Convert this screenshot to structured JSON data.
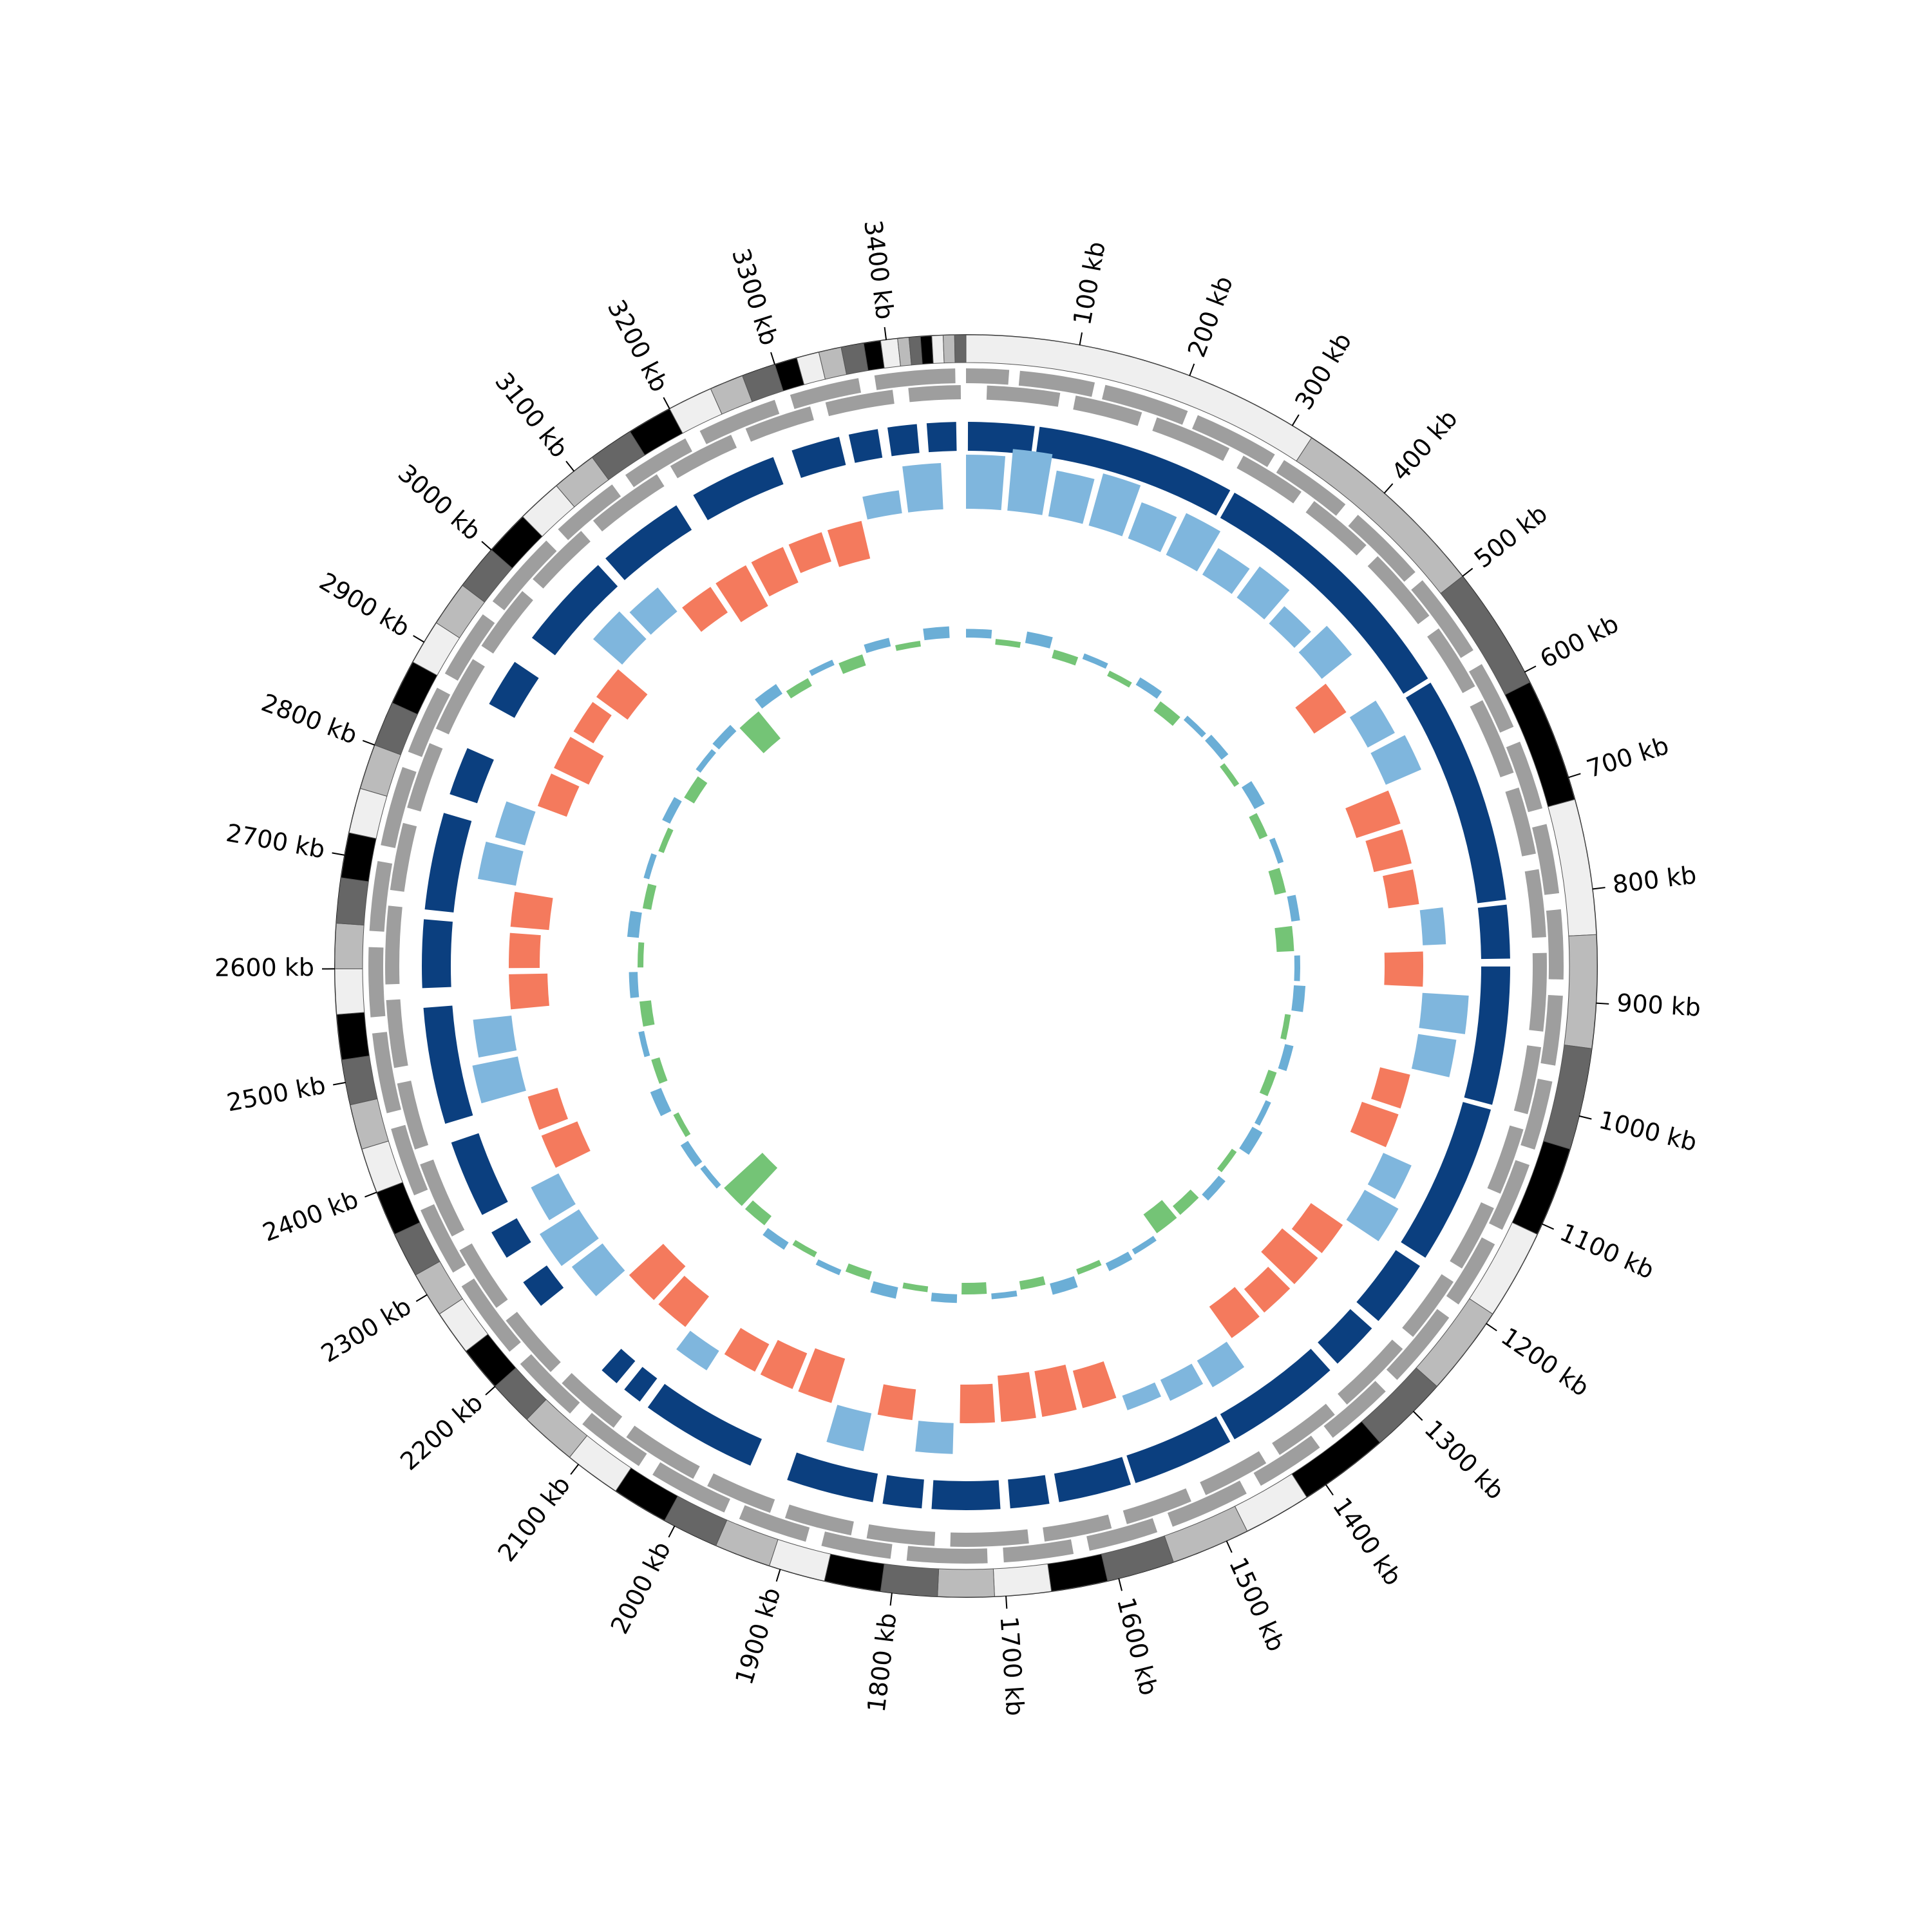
{
  "chart_data": {
    "type": "circos",
    "xlim": [
      0,
      3470
    ],
    "xticks": [
      {
        "value": 100,
        "label": "100 kb"
      },
      {
        "value": 200,
        "label": "200 kb"
      },
      {
        "value": 300,
        "label": "300 kb"
      },
      {
        "value": 400,
        "label": "400 kb"
      },
      {
        "value": 500,
        "label": "500 kb"
      },
      {
        "value": 600,
        "label": "600 kb"
      },
      {
        "value": 700,
        "label": "700 kb"
      },
      {
        "value": 800,
        "label": "800 kb"
      },
      {
        "value": 900,
        "label": "900 kb"
      },
      {
        "value": 1000,
        "label": "1000 kb"
      },
      {
        "value": 1100,
        "label": "1100 kb"
      },
      {
        "value": 1200,
        "label": "1200 kb"
      },
      {
        "value": 1300,
        "label": "1300 kb"
      },
      {
        "value": 1400,
        "label": "1400 kb"
      },
      {
        "value": 1500,
        "label": "1500 kb"
      },
      {
        "value": 1600,
        "label": "1600 kb"
      },
      {
        "value": 1700,
        "label": "1700 kb"
      },
      {
        "value": 1800,
        "label": "1800 kb"
      },
      {
        "value": 1900,
        "label": "1900 kb"
      },
      {
        "value": 2000,
        "label": "2000 kb"
      },
      {
        "value": 2100,
        "label": "2100 kb"
      },
      {
        "value": 2200,
        "label": "2200 kb"
      },
      {
        "value": 2300,
        "label": "2300 kb"
      },
      {
        "value": 2400,
        "label": "2400 kb"
      },
      {
        "value": 2500,
        "label": "2500 kb"
      },
      {
        "value": 2600,
        "label": "2600 kb"
      },
      {
        "value": 2700,
        "label": "2700 kb"
      },
      {
        "value": 2800,
        "label": "2800 kb"
      },
      {
        "value": 2900,
        "label": "2900 kb"
      },
      {
        "value": 3000,
        "label": "3000 kb"
      },
      {
        "value": 3100,
        "label": "3100 kb"
      },
      {
        "value": 3200,
        "label": "3200 kb"
      },
      {
        "value": 3300,
        "label": "3300 kb"
      },
      {
        "value": 3400,
        "label": "3400 kb"
      }
    ],
    "bands": {
      "colors": [
        "#efefef",
        "#bbbbbb",
        "#666666",
        "#000000"
      ],
      "edges": [
        0,
        320,
        500,
        610,
        720,
        840,
        940,
        1030,
        1110,
        1190,
        1270,
        1340,
        1420,
        1480,
        1550,
        1610,
        1660,
        1710,
        1760,
        1810,
        1860,
        1910,
        1960,
        2010,
        2060,
        2110,
        2160,
        2200,
        2240,
        2280,
        2320,
        2360,
        2400,
        2440,
        2480,
        2520,
        2560,
        2600,
        2640,
        2680,
        2720,
        2760,
        2800,
        2840,
        2880,
        2920,
        2960,
        3000,
        3040,
        3080,
        3120,
        3160,
        3200,
        3240,
        3270,
        3300,
        3320,
        3340,
        3360,
        3380,
        3395,
        3410,
        3420,
        3430,
        3440,
        3450,
        3460,
        3470
      ]
    },
    "genes_fwd": {
      "color": "#9e9e9e",
      "intervals": [
        [
          0,
          40
        ],
        [
          50,
          120
        ],
        [
          130,
          210
        ],
        [
          220,
          300
        ],
        [
          310,
          380
        ],
        [
          395,
          470
        ],
        [
          480,
          560
        ],
        [
          575,
          640
        ],
        [
          655,
          720
        ],
        [
          735,
          800
        ],
        [
          815,
          880
        ],
        [
          895,
          960
        ],
        [
          975,
          1040
        ],
        [
          1055,
          1120
        ],
        [
          1135,
          1200
        ],
        [
          1215,
          1290
        ],
        [
          1305,
          1370
        ],
        [
          1385,
          1450
        ],
        [
          1465,
          1540
        ],
        [
          1555,
          1620
        ],
        [
          1635,
          1700
        ],
        [
          1715,
          1790
        ],
        [
          1805,
          1870
        ],
        [
          1885,
          1950
        ],
        [
          1965,
          2040
        ],
        [
          2055,
          2120
        ],
        [
          2135,
          2200
        ],
        [
          2215,
          2290
        ],
        [
          2305,
          2370
        ],
        [
          2385,
          2450
        ],
        [
          2465,
          2540
        ],
        [
          2555,
          2620
        ],
        [
          2635,
          2700
        ],
        [
          2715,
          2790
        ],
        [
          2805,
          2870
        ],
        [
          2885,
          2950
        ],
        [
          2965,
          3040
        ],
        [
          3055,
          3120
        ],
        [
          3135,
          3200
        ],
        [
          3215,
          3290
        ],
        [
          3305,
          3370
        ],
        [
          3385,
          3460
        ]
      ]
    },
    "genes_rev": {
      "color": "#9e9e9e",
      "intervals": [
        [
          20,
          90
        ],
        [
          105,
          170
        ],
        [
          185,
          260
        ],
        [
          275,
          340
        ],
        [
          355,
          420
        ],
        [
          435,
          510
        ],
        [
          525,
          590
        ],
        [
          605,
          680
        ],
        [
          695,
          760
        ],
        [
          775,
          840
        ],
        [
          855,
          930
        ],
        [
          945,
          1010
        ],
        [
          1025,
          1090
        ],
        [
          1105,
          1170
        ],
        [
          1185,
          1250
        ],
        [
          1265,
          1340
        ],
        [
          1355,
          1420
        ],
        [
          1435,
          1500
        ],
        [
          1515,
          1580
        ],
        [
          1595,
          1660
        ],
        [
          1675,
          1750
        ],
        [
          1765,
          1830
        ],
        [
          1845,
          1910
        ],
        [
          1925,
          1990
        ],
        [
          2005,
          2080
        ],
        [
          2095,
          2160
        ],
        [
          2175,
          2240
        ],
        [
          2255,
          2320
        ],
        [
          2335,
          2410
        ],
        [
          2425,
          2490
        ],
        [
          2505,
          2570
        ],
        [
          2585,
          2660
        ],
        [
          2675,
          2740
        ],
        [
          2755,
          2820
        ],
        [
          2835,
          2910
        ],
        [
          2925,
          2990
        ],
        [
          3005,
          3070
        ],
        [
          3085,
          3160
        ],
        [
          3175,
          3240
        ],
        [
          3255,
          3320
        ],
        [
          3335,
          3400
        ],
        [
          3415,
          3465
        ]
      ]
    },
    "cds": {
      "color": "#0b3f7f",
      "intervals": [
        [
          2,
          70
        ],
        [
          75,
          280
        ],
        [
          285,
          560
        ],
        [
          565,
          800
        ],
        [
          805,
          860
        ],
        [
          868,
          1010
        ],
        [
          1015,
          1180
        ],
        [
          1190,
          1260
        ],
        [
          1270,
          1320
        ],
        [
          1330,
          1450
        ],
        [
          1455,
          1560
        ],
        [
          1565,
          1640
        ],
        [
          1650,
          1690
        ],
        [
          1700,
          1770
        ],
        [
          1780,
          1820
        ],
        [
          1830,
          1920
        ],
        [
          1960,
          2080
        ],
        [
          2090,
          2110
        ],
        [
          2120,
          2140
        ],
        [
          2230,
          2260
        ],
        [
          2290,
          2320
        ],
        [
          2340,
          2420
        ],
        [
          2440,
          2560
        ],
        [
          2580,
          2650
        ],
        [
          2660,
          2760
        ],
        [
          2780,
          2830
        ],
        [
          2880,
          2930
        ],
        [
          2960,
          3060
        ],
        [
          3070,
          3160
        ],
        [
          3180,
          3270
        ],
        [
          3290,
          3340
        ],
        [
          3350,
          3380
        ],
        [
          3390,
          3420
        ],
        [
          3430,
          3460
        ]
      ]
    },
    "skew": {
      "window": 50,
      "ylim": [
        -1,
        1
      ],
      "pos_color": "#7fb6dd",
      "neg_color": "#f47a5d",
      "values": [
        0.7,
        0.8,
        0.6,
        0.7,
        0.5,
        0.6,
        0.4,
        0.5,
        0.3,
        0.5,
        -0.5,
        0.4,
        0.5,
        -0.6,
        -0.5,
        -0.4,
        0.3,
        -0.5,
        0.6,
        0.5,
        -0.4,
        -0.5,
        0.4,
        0.5,
        -0.5,
        -0.6,
        -0.4,
        -0.5,
        0.4,
        0.3,
        0.2,
        -0.5,
        -0.6,
        -0.6,
        -0.5,
        0.4,
        -0.4,
        0.5,
        -0.6,
        -0.5,
        -0.4,
        0.3,
        -0.5,
        -0.6,
        0.5,
        0.6,
        0.4,
        -0.5,
        -0.4,
        0.6,
        0.5,
        -0.5,
        -0.4,
        -0.5,
        0.5,
        0.4,
        -0.4,
        -0.5,
        -0.3,
        -0.5,
        0.5,
        0.4,
        -0.4,
        -0.6,
        -0.5,
        -0.4,
        -0.5,
        0.3,
        0.6
      ]
    },
    "gc": {
      "window": 50,
      "ylim": [
        -1,
        1
      ],
      "pos_color": "#6baed6",
      "neg_color": "#74c476",
      "values": [
        0.15,
        -0.1,
        0.2,
        -0.15,
        0.1,
        -0.1,
        0.15,
        -0.2,
        0.1,
        0.15,
        -0.1,
        0.2,
        -0.15,
        0.1,
        -0.2,
        0.15,
        -0.3,
        0.1,
        0.2,
        -0.1,
        0.15,
        -0.15,
        0.1,
        0.2,
        -0.1,
        0.15,
        -0.2,
        -0.4,
        0.1,
        0.15,
        -0.1,
        0.2,
        -0.15,
        0.1,
        -0.2,
        0.15,
        -0.1,
        0.2,
        -0.15,
        0.1,
        -0.1,
        0.15,
        -0.2,
        -0.9,
        0.1,
        0.15,
        -0.1,
        0.2,
        -0.15,
        0.1,
        -0.2,
        0.15,
        -0.1,
        0.2,
        -0.15,
        0.1,
        -0.1,
        0.15,
        -0.2,
        0.1,
        0.15,
        -0.6,
        0.2,
        -0.15,
        0.1,
        -0.2,
        0.15,
        -0.1,
        0.2
      ]
    }
  }
}
